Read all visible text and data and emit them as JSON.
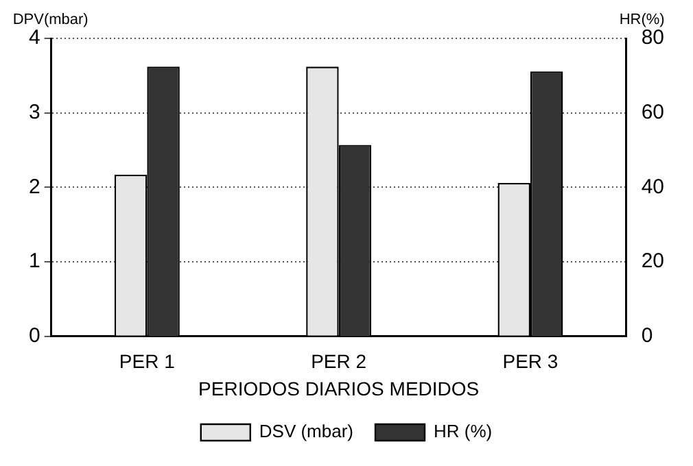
{
  "chart_data": {
    "type": "bar",
    "xlabel": "PERIODOS DIARIOS MEDIDOS",
    "ylabel": "DPV(mbar)",
    "y2label": "HR(%)",
    "categories": [
      "PER 1",
      "PER 2",
      "PER 3"
    ],
    "series": [
      {
        "name": "DSV (mbar)",
        "color": "#e6e6e6",
        "values": [
          2.17,
          3.62,
          2.06
        ]
      },
      {
        "name": "HR (%)",
        "color": "#333333",
        "axis": "y2",
        "values": [
          72.4,
          51.4,
          71.1
        ]
      }
    ],
    "ylim": [
      0,
      4
    ],
    "yticks": [
      0,
      1,
      2,
      3,
      4
    ],
    "y2lim": [
      0,
      80
    ],
    "y2ticks": [
      0,
      20,
      40,
      60,
      80
    ],
    "grid": "y",
    "legend": "bottom"
  }
}
